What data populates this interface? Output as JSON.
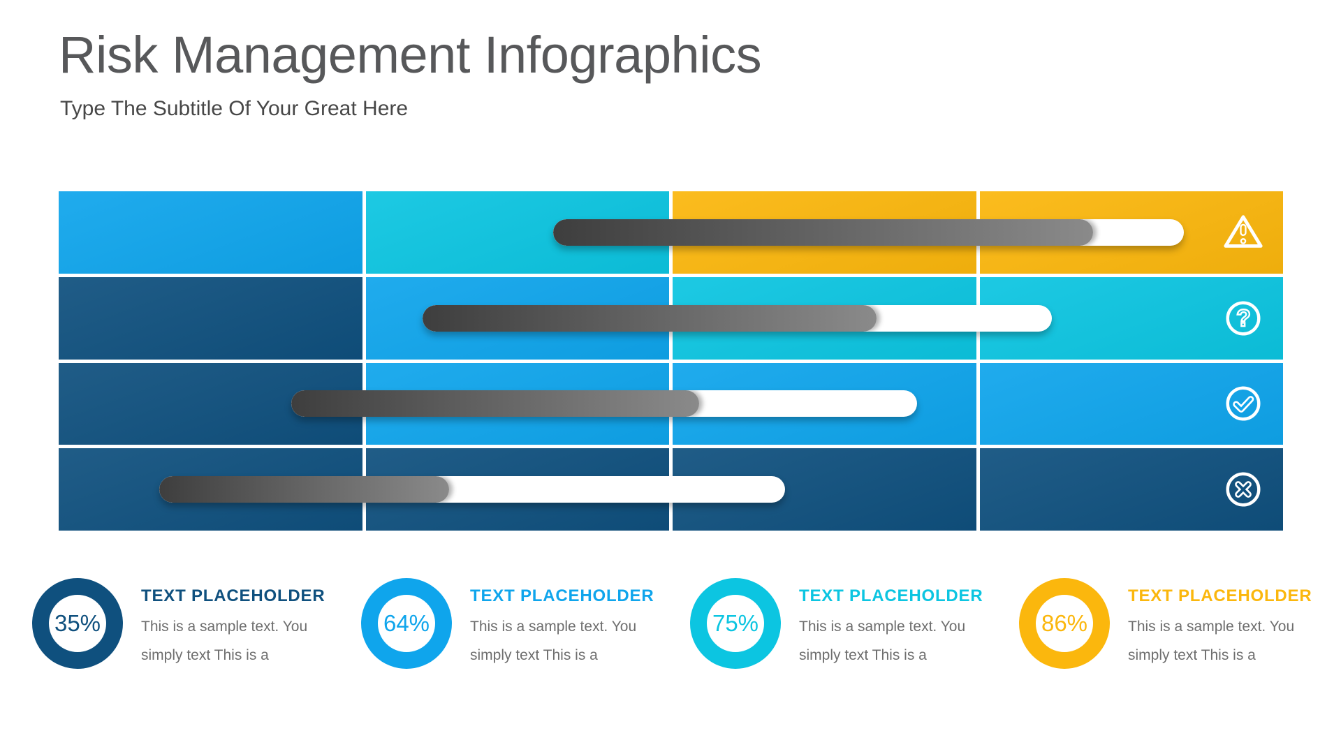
{
  "header": {
    "title": "Risk Management Infographics",
    "subtitle": "Type The Subtitle Of Your Great Here"
  },
  "colors": {
    "navy": "#0F507E",
    "blue": "#0FA5EC",
    "cyan": "#0CC5E1",
    "yellow": "#FBB70D",
    "bar_dark": "#3E3E3E",
    "bar_light": "#8A8A8A",
    "bar_white": "#FFFFFF",
    "title_text": "#57585A",
    "subtitle_text": "#474747",
    "body_text": "#6E6E6E",
    "icon_stroke": "#FFFFFF"
  },
  "matrix": {
    "rows": [
      {
        "cells": [
          "blue",
          "cyan",
          "yellow",
          "yellow"
        ],
        "icon": "warning-triangle-icon",
        "bar": {
          "start_pct": 40.4,
          "gray_end_pct": 84.5,
          "white_end_pct": 91.9
        }
      },
      {
        "cells": [
          "navy",
          "blue",
          "cyan",
          "cyan"
        ],
        "icon": "question-circle-icon",
        "bar": {
          "start_pct": 29.7,
          "gray_end_pct": 66.8,
          "white_end_pct": 81.1
        }
      },
      {
        "cells": [
          "navy",
          "blue",
          "blue",
          "blue"
        ],
        "icon": "check-circle-icon",
        "bar": {
          "start_pct": 19.0,
          "gray_end_pct": 52.3,
          "white_end_pct": 70.1
        }
      },
      {
        "cells": [
          "navy",
          "navy",
          "navy",
          "navy"
        ],
        "icon": "cross-circle-icon",
        "bar": {
          "start_pct": 8.2,
          "gray_end_pct": 31.9,
          "white_end_pct": 59.3
        }
      }
    ]
  },
  "stats": [
    {
      "percent": "35%",
      "accent": "navy",
      "heading": "TEXT PLACEHOLDER",
      "line1": "This is a sample text. You",
      "line2": "simply text This is a"
    },
    {
      "percent": "64%",
      "accent": "blue",
      "heading": "TEXT PLACEHOLDER",
      "line1": "This is a sample text. You",
      "line2": "simply text This is a"
    },
    {
      "percent": "75%",
      "accent": "cyan",
      "heading": "TEXT PLACEHOLDER",
      "line1": "This is a sample text. You",
      "line2": "simply text This is a"
    },
    {
      "percent": "86%",
      "accent": "yellow",
      "heading": "TEXT PLACEHOLDER",
      "line1": "This is a sample text. You",
      "line2": "simply text This is a"
    }
  ],
  "chart_data": {
    "type": "bar",
    "title": "Risk Management Infographics",
    "categories": [
      "warning-row",
      "question-row",
      "check-row",
      "cross-row"
    ],
    "series": [
      {
        "name": "bar_start_pct",
        "values": [
          40.4,
          29.7,
          19.0,
          8.2
        ]
      },
      {
        "name": "bar_gray_end_pct",
        "values": [
          84.5,
          66.8,
          52.3,
          31.9
        ]
      },
      {
        "name": "bar_white_end_pct",
        "values": [
          91.9,
          81.1,
          70.1,
          59.3
        ]
      }
    ],
    "cell_color_matrix": [
      [
        "blue",
        "cyan",
        "yellow",
        "yellow"
      ],
      [
        "navy",
        "blue",
        "cyan",
        "cyan"
      ],
      [
        "navy",
        "blue",
        "blue",
        "blue"
      ],
      [
        "navy",
        "navy",
        "navy",
        "navy"
      ]
    ],
    "donut_percentages": [
      35,
      64,
      75,
      86
    ],
    "legend_position": "none",
    "grid": false
  }
}
